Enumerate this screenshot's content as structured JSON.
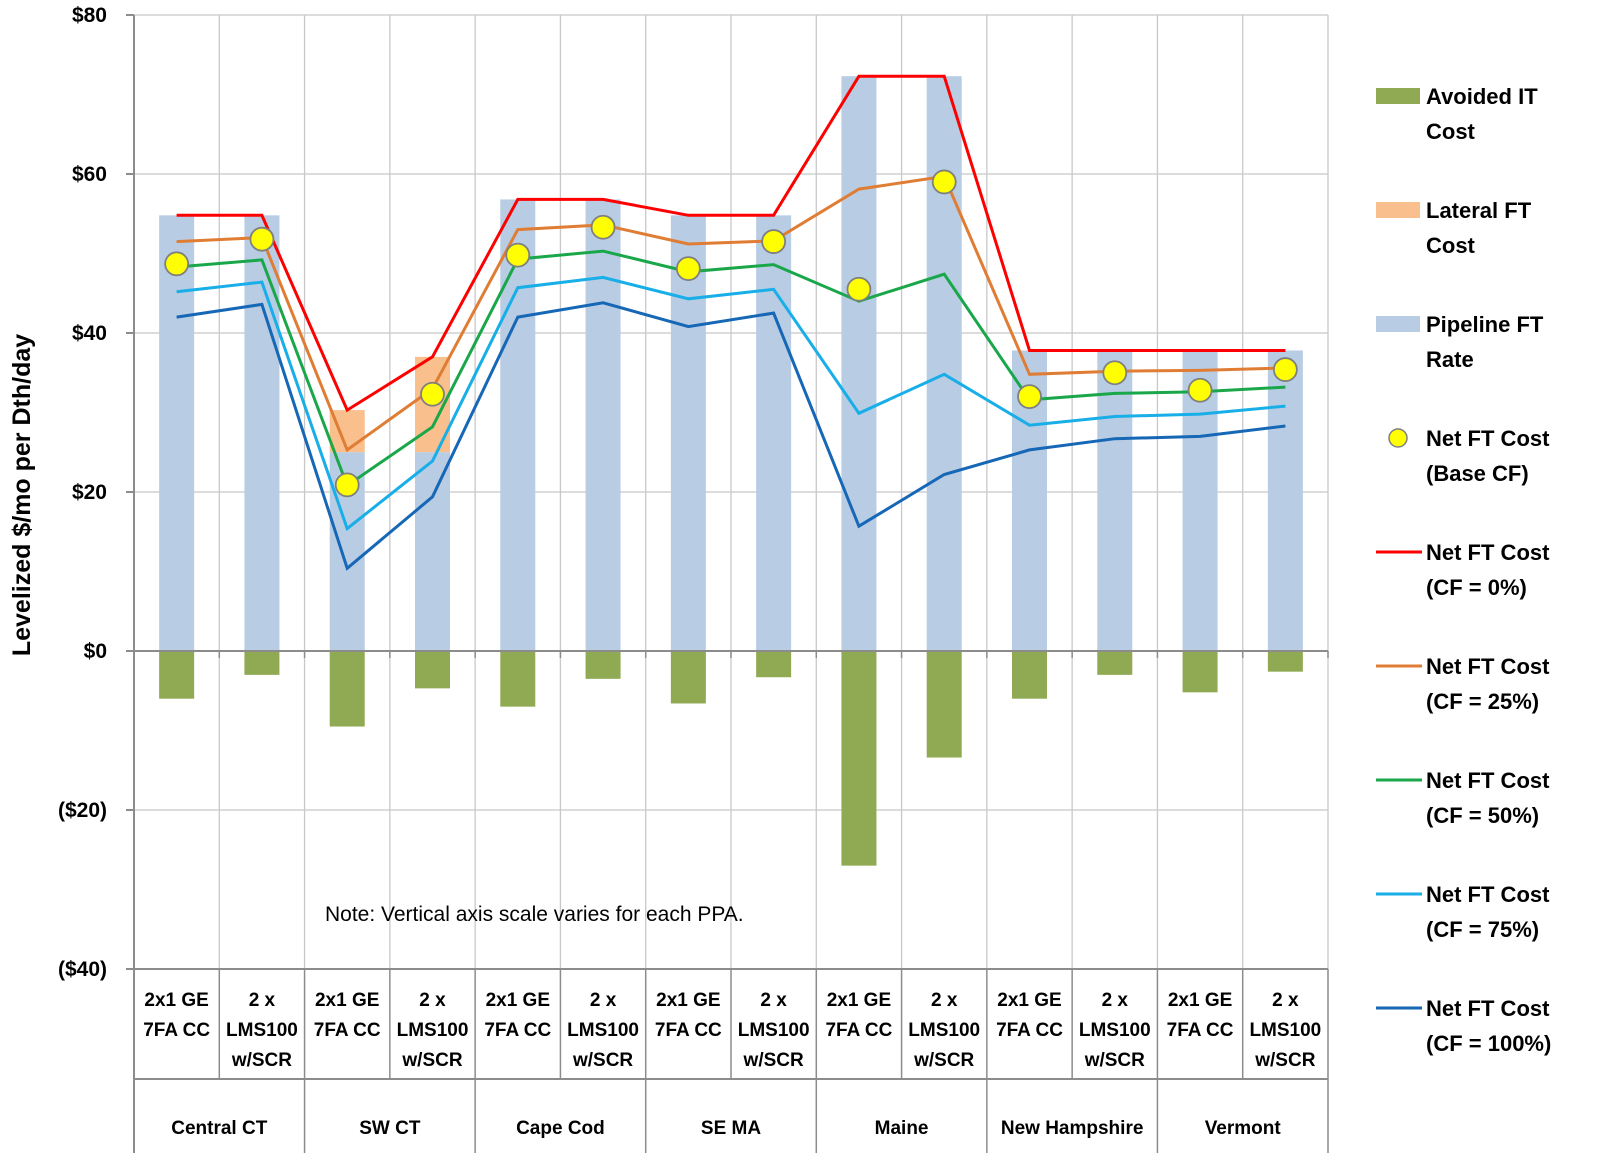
{
  "chart_data": {
    "type": "bar",
    "ylabel": "Levelized $/mo per Dth/day",
    "ylim": [
      -40,
      80
    ],
    "y_ticks": [
      {
        "value": 80,
        "label": "$80"
      },
      {
        "value": 60,
        "label": "$60"
      },
      {
        "value": 40,
        "label": "$40"
      },
      {
        "value": 20,
        "label": "$20"
      },
      {
        "value": 0,
        "label": "$0"
      },
      {
        "value": -20,
        "label": "($20)"
      },
      {
        "value": -40,
        "label": "($40)"
      }
    ],
    "grid": "vertical separators between categories, horizontal lines at major ticks",
    "note": "Note:  Vertical axis scale varies for each PPA.",
    "groups": [
      "Central CT",
      "SW CT",
      "Cape Cod",
      "SE MA",
      "Maine",
      "New Hampshire",
      "Vermont"
    ],
    "categories": [
      [
        "2x1 GE",
        "7FA CC"
      ],
      [
        "2 x",
        "LMS100",
        "w/SCR"
      ],
      [
        "2x1 GE",
        "7FA CC"
      ],
      [
        "2 x",
        "LMS100",
        "w/SCR"
      ],
      [
        "2x1 GE",
        "7FA CC"
      ],
      [
        "2 x",
        "LMS100",
        "w/SCR"
      ],
      [
        "2x1 GE",
        "7FA CC"
      ],
      [
        "2 x",
        "LMS100",
        "w/SCR"
      ],
      [
        "2x1 GE",
        "7FA CC"
      ],
      [
        "2 x",
        "LMS100",
        "w/SCR"
      ],
      [
        "2x1 GE",
        "7FA CC"
      ],
      [
        "2 x",
        "LMS100",
        "w/SCR"
      ],
      [
        "2x1 GE",
        "7FA CC"
      ],
      [
        "2 x",
        "LMS100",
        "w/SCR"
      ]
    ],
    "legend_position": "right",
    "bars": [
      {
        "name": "Avoided IT Cost",
        "color": "#8faa52",
        "values": [
          -6,
          -3,
          -9.5,
          -4.7,
          -7,
          -3.5,
          -6.6,
          -3.3,
          -27,
          -13.4,
          -6,
          -3,
          -5.2,
          -2.6
        ]
      },
      {
        "name": "Lateral FT Cost",
        "color": "#f9c08e",
        "base": [
          0,
          0,
          25,
          25,
          0,
          0,
          0,
          0,
          0,
          0,
          0,
          0,
          0,
          0
        ],
        "values": [
          0,
          0,
          5.3,
          12,
          0,
          0,
          0,
          0,
          0,
          0,
          0,
          0,
          0,
          0
        ]
      },
      {
        "name": "Pipeline FT Rate",
        "color": "#b8cce4",
        "values": [
          54.8,
          54.8,
          25,
          25,
          56.8,
          56.8,
          54.8,
          54.8,
          72.3,
          72.3,
          37.8,
          37.8,
          37.8,
          37.8
        ]
      }
    ],
    "markers": {
      "name": "Net FT Cost (Base CF)",
      "legend_label": [
        "Net FT Cost",
        "(Base CF)"
      ],
      "color": "#ffff00",
      "values": [
        48.7,
        51.8,
        20.9,
        32.3,
        49.8,
        53.3,
        48.1,
        51.5,
        45.5,
        59.0,
        32.0,
        35.0,
        32.8,
        35.4
      ]
    },
    "lines": [
      {
        "name": "Net FT Cost (CF = 0%)",
        "legend_label": [
          "Net FT Cost",
          "(CF = 0%)"
        ],
        "color": "#ff0000",
        "values": [
          54.8,
          54.8,
          30.3,
          37.0,
          56.8,
          56.8,
          54.8,
          54.8,
          72.3,
          72.3,
          37.8,
          37.8,
          37.8,
          37.8
        ]
      },
      {
        "name": "Net FT Cost (CF = 25%)",
        "legend_label": [
          "Net FT Cost",
          "(CF = 25%)"
        ],
        "color": "#e07d34",
        "values": [
          51.5,
          52.0,
          25.3,
          33.0,
          53.0,
          53.6,
          51.2,
          51.6,
          58.1,
          59.7,
          34.8,
          35.2,
          35.3,
          35.6
        ]
      },
      {
        "name": "Net FT Cost (CF = 50%)",
        "legend_label": [
          "Net FT Cost",
          "(CF = 50%)"
        ],
        "color": "#1aa74a",
        "values": [
          48.3,
          49.2,
          20.8,
          28.2,
          49.3,
          50.3,
          47.7,
          48.6,
          44.0,
          47.4,
          31.6,
          32.4,
          32.6,
          33.2
        ]
      },
      {
        "name": "Net FT Cost (CF = 75%)",
        "legend_label": [
          "Net FT Cost",
          "(CF = 75%)"
        ],
        "color": "#18aee8",
        "values": [
          45.2,
          46.4,
          15.4,
          23.9,
          45.7,
          47.0,
          44.3,
          45.5,
          29.9,
          34.8,
          28.4,
          29.5,
          29.8,
          30.8
        ]
      },
      {
        "name": "Net FT Cost (CF = 100%)",
        "legend_label": [
          "Net FT Cost",
          "(CF = 100%)"
        ],
        "color": "#1667b6",
        "values": [
          42.0,
          43.6,
          10.4,
          19.4,
          42.0,
          43.8,
          40.8,
          42.5,
          15.7,
          22.2,
          25.3,
          26.7,
          27.0,
          28.3
        ]
      }
    ]
  }
}
